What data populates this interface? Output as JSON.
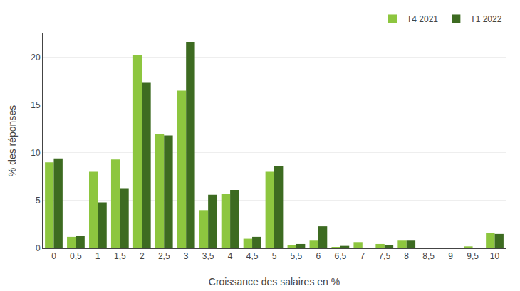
{
  "chart_data": {
    "type": "bar",
    "categories": [
      "0",
      "0,5",
      "1",
      "1,5",
      "2",
      "2,5",
      "3",
      "3,5",
      "4",
      "4,5",
      "5",
      "5,5",
      "6",
      "6,5",
      "7",
      "7,5",
      "8",
      "8,5",
      "9",
      "9,5",
      "10"
    ],
    "series": [
      {
        "name": "T4 2021",
        "color": "#8dc63f",
        "values": [
          9.0,
          1.2,
          8.0,
          9.3,
          20.2,
          12.0,
          16.5,
          4.0,
          5.7,
          1.0,
          8.0,
          0.35,
          0.8,
          0.1,
          0.65,
          0.45,
          0.8,
          0.0,
          0.0,
          0.2,
          1.6
        ]
      },
      {
        "name": "T1 2022",
        "color": "#3d6b21",
        "values": [
          9.4,
          1.3,
          4.8,
          6.3,
          17.4,
          11.8,
          21.6,
          5.6,
          6.1,
          1.2,
          8.6,
          0.45,
          2.3,
          0.25,
          0.0,
          0.35,
          0.8,
          0.0,
          0.0,
          0.0,
          1.5
        ]
      }
    ],
    "xlabel": "Croissance des salaires en %",
    "ylabel": "% des réponses",
    "ylim": [
      0,
      22.5
    ],
    "yticks": [
      0,
      5,
      10,
      15,
      20
    ],
    "grid": true,
    "legend": "upper right"
  }
}
